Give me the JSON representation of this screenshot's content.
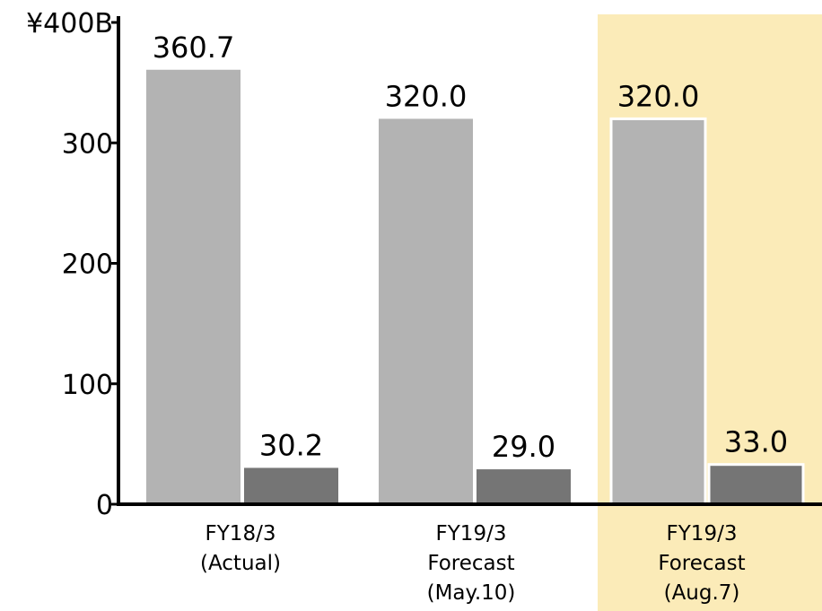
{
  "chart_data": {
    "type": "bar",
    "categories": [
      [
        "FY18/3",
        "(Actual)"
      ],
      [
        "FY19/3",
        "Forecast",
        "(May.10)"
      ],
      [
        "FY19/3",
        "Forecast",
        "(Aug.7)"
      ]
    ],
    "series": [
      {
        "values": [
          360.7,
          320.0,
          320.0
        ],
        "labels": [
          "360.7",
          "320.0",
          "320.0"
        ],
        "color": "#b3b3b3"
      },
      {
        "values": [
          30.2,
          29.0,
          33.0
        ],
        "labels": [
          "30.2",
          "29.0",
          "33.0"
        ],
        "color": "#757575"
      }
    ],
    "y_ticks": [
      {
        "value": 0,
        "label": "0"
      },
      {
        "value": 100,
        "label": "100"
      },
      {
        "value": 200,
        "label": "200"
      },
      {
        "value": 300,
        "label": "300"
      },
      {
        "value": 400,
        "label": "¥400B"
      }
    ],
    "ylim": [
      0,
      400
    ],
    "highlight": {
      "category_index": 2,
      "color": "#fbebb8"
    },
    "grid": false,
    "legend": "none"
  }
}
